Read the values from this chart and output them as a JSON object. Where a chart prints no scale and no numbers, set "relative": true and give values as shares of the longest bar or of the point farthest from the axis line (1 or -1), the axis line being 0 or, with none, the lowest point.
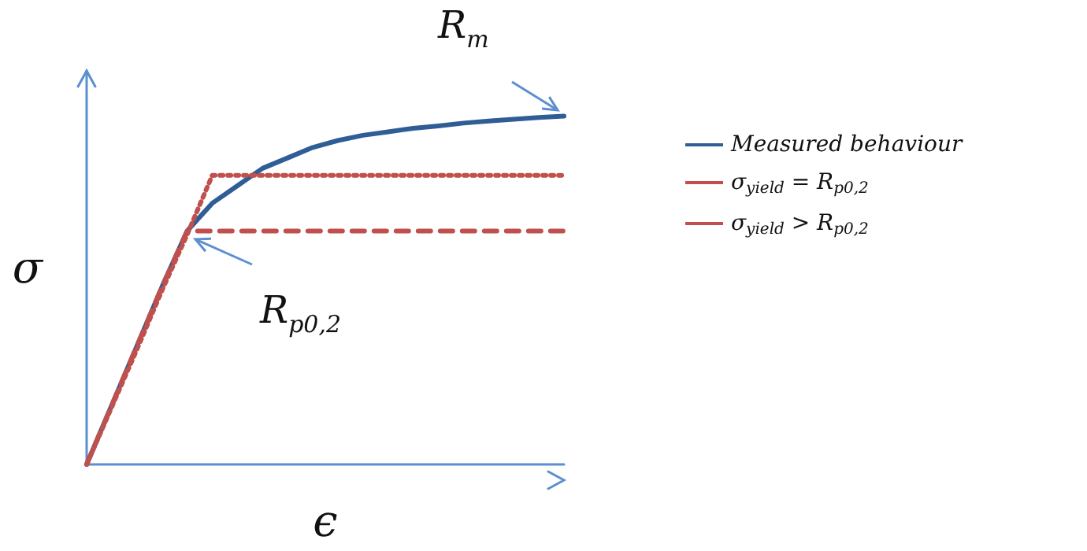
{
  "chart_data": {
    "type": "line",
    "relative": true,
    "xlabel": "ϵ",
    "ylabel": "σ",
    "categories": [
      null,
      null,
      null,
      null,
      null,
      null,
      null,
      null,
      null,
      null,
      null,
      null,
      null,
      null,
      null,
      null,
      null,
      null,
      null,
      null
    ],
    "grid": false,
    "legend": "right",
    "marker": "none",
    "series": [
      {
        "name": "Measured behaviour",
        "color": "#2f5d95",
        "line_style": "solid",
        "values": [
          0,
          0.17,
          0.34,
          0.51,
          0.67,
          0.75,
          0.8,
          0.85,
          0.88,
          0.91,
          0.93,
          0.945,
          0.955,
          0.965,
          0.972,
          0.98,
          0.986,
          0.991,
          0.996,
          1
        ]
      },
      {
        "name": "σ$_{yield}$ = R$_{p0,2}$",
        "color": "#c0504d",
        "line_style": "dashed",
        "values": [
          0,
          0.17,
          0.34,
          0.51,
          0.67,
          0.67,
          0.67,
          0.67,
          0.67,
          0.67,
          0.67,
          0.67,
          0.67,
          0.67,
          0.67,
          0.67,
          0.67,
          0.67,
          0.67,
          0.67
        ]
      },
      {
        "name": "σ$_{yield}$ > R$_{p0,2}$",
        "color": "#c0504d",
        "line_style": "dotted",
        "values": [
          0,
          0.165,
          0.33,
          0.5,
          0.66,
          0.83,
          0.83,
          0.83,
          0.83,
          0.83,
          0.83,
          0.83,
          0.83,
          0.83,
          0.83,
          0.83,
          0.83,
          0.83,
          0.83,
          0.83
        ]
      }
    ],
    "annotations": [
      "R$_{m}$",
      "R$_{p0,2}$"
    ]
  }
}
